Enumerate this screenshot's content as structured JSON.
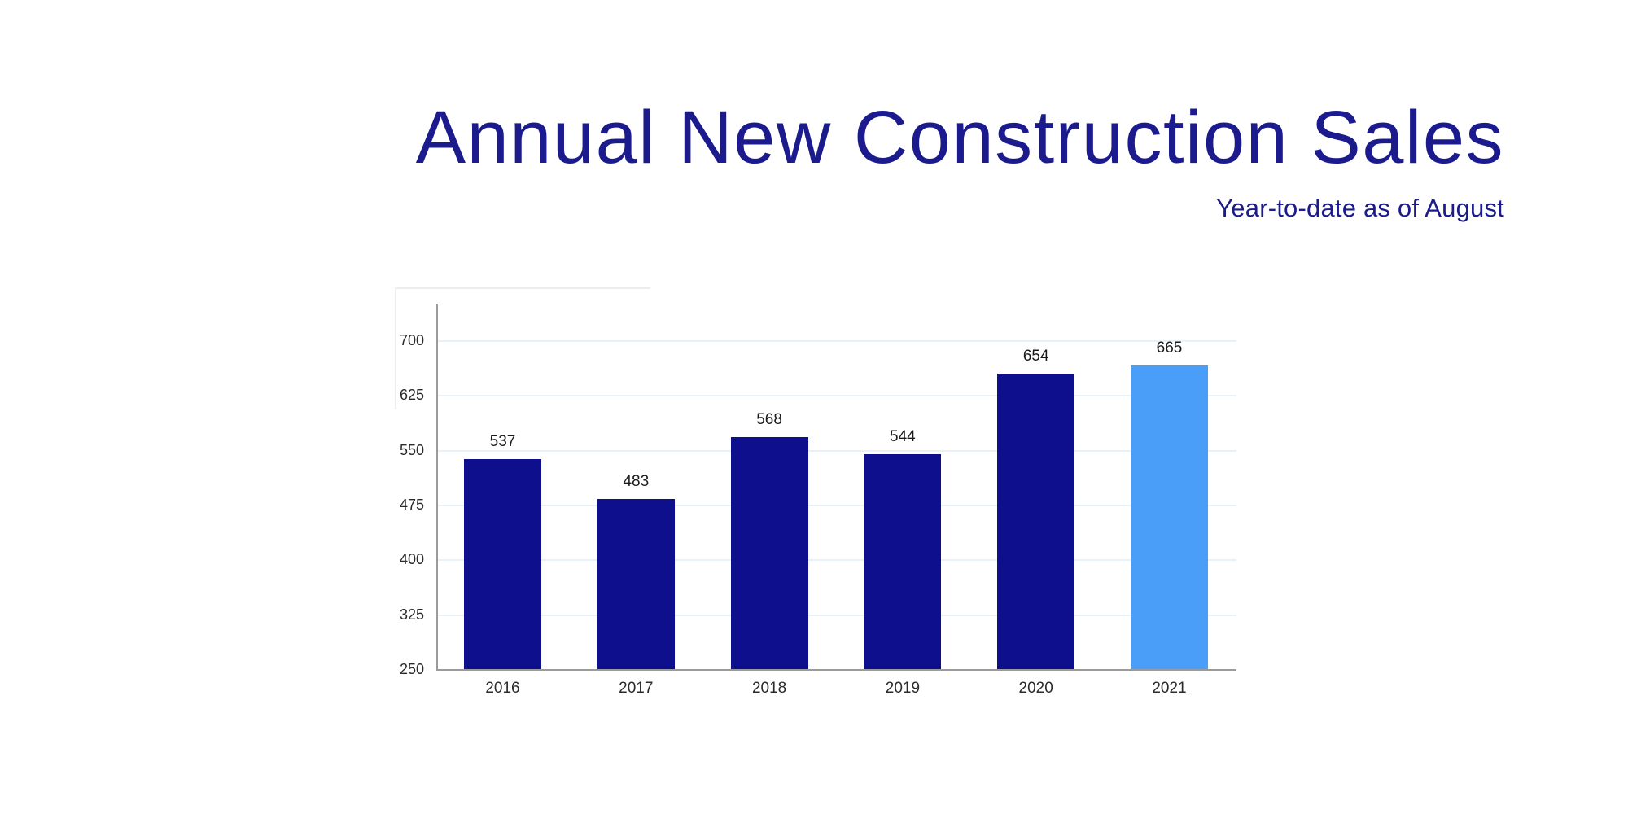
{
  "header": {
    "title": "Annual New Construction Sales",
    "subtitle": "Year-to-date as of August"
  },
  "colors": {
    "title_text": "#1b1b8e",
    "bar_default": "#0d0f8c",
    "bar_highlight": "#4b9ef8",
    "gridline": "#e9f1f8",
    "axis": "#9b9b9b",
    "tick_label": "#2b2b2b",
    "value_label": "#1a1a1a"
  },
  "chart_data": {
    "type": "bar",
    "title": "Annual New Construction Sales",
    "subtitle": "Year-to-date as of August",
    "categories": [
      "2016",
      "2017",
      "2018",
      "2019",
      "2020",
      "2021"
    ],
    "values": [
      537,
      483,
      568,
      544,
      654,
      665
    ],
    "highlighted_category": "2021",
    "xlabel": "",
    "ylabel": "",
    "ylim": [
      250,
      700
    ],
    "yticks": [
      250,
      325,
      400,
      475,
      550,
      625,
      700
    ],
    "grid": "horizontal",
    "legend": "none",
    "value_labels_shown": true
  }
}
